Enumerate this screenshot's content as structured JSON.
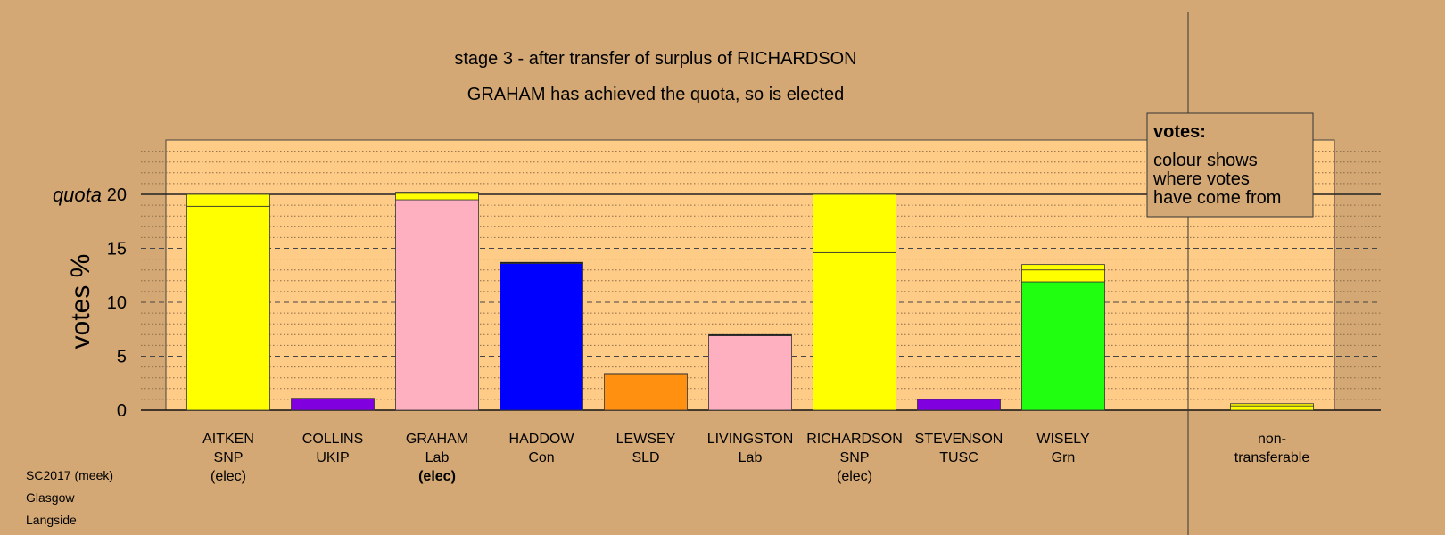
{
  "chart_data": {
    "type": "bar",
    "stacked": true,
    "title": "stage 3 - after transfer of surplus of RICHARDSON",
    "subtitle": "GRAHAM has achieved the quota, so is elected",
    "ylabel": "votes %",
    "ylim": [
      0,
      20
    ],
    "yticks": [
      0,
      5,
      10,
      15,
      20
    ],
    "quota_label": "quota",
    "quota": 20,
    "grid": true,
    "candidates": [
      {
        "name": "AITKEN",
        "party": "SNP",
        "status": "(elec)",
        "status_bold": false,
        "segments": [
          {
            "value": 18.9,
            "color": "#ffff00"
          },
          {
            "value": 1.1,
            "color": "#ffff00"
          }
        ]
      },
      {
        "name": "COLLINS",
        "party": "UKIP",
        "status": "",
        "status_bold": false,
        "segments": [
          {
            "value": 1.1,
            "color": "#8000e0"
          }
        ]
      },
      {
        "name": "GRAHAM",
        "party": "Lab",
        "status": "(elec)",
        "status_bold": true,
        "segments": [
          {
            "value": 19.5,
            "color": "#ffb0c0"
          },
          {
            "value": 0.6,
            "color": "#ffff00"
          },
          {
            "value": 0.1,
            "color": "#000000"
          }
        ]
      },
      {
        "name": "HADDOW",
        "party": "Con",
        "status": "",
        "status_bold": false,
        "segments": [
          {
            "value": 13.6,
            "color": "#0000ff"
          },
          {
            "value": 0.1,
            "color": "#000000"
          }
        ]
      },
      {
        "name": "LEWSEY",
        "party": "SLD",
        "status": "",
        "status_bold": false,
        "segments": [
          {
            "value": 3.3,
            "color": "#ff9010"
          },
          {
            "value": 0.1,
            "color": "#000000"
          }
        ]
      },
      {
        "name": "LIVINGSTON",
        "party": "Lab",
        "status": "",
        "status_bold": false,
        "segments": [
          {
            "value": 6.9,
            "color": "#ffb0c0"
          },
          {
            "value": 0.1,
            "color": "#000000"
          }
        ]
      },
      {
        "name": "RICHARDSON",
        "party": "SNP",
        "status": "(elec)",
        "status_bold": false,
        "segments": [
          {
            "value": 14.6,
            "color": "#ffff00"
          },
          {
            "value": 5.4,
            "color": "#ffff00"
          }
        ]
      },
      {
        "name": "STEVENSON",
        "party": "TUSC",
        "status": "",
        "status_bold": false,
        "segments": [
          {
            "value": 1.0,
            "color": "#8000e0"
          }
        ]
      },
      {
        "name": "WISELY",
        "party": "Grn",
        "status": "",
        "status_bold": false,
        "segments": [
          {
            "value": 11.9,
            "color": "#20ff10"
          },
          {
            "value": 1.1,
            "color": "#ffff00"
          },
          {
            "value": 0.5,
            "color": "#ffff00"
          }
        ]
      }
    ],
    "nontransferable": {
      "label_line1": "non-",
      "label_line2": "transferable",
      "segments": [
        {
          "value": 0.4,
          "color": "#ffff00"
        },
        {
          "value": 0.2,
          "color": "#ffff00"
        }
      ]
    },
    "legend": {
      "position": "top-right",
      "title": "votes:",
      "lines": [
        "colour shows",
        "where votes",
        "have come from"
      ]
    },
    "colors": {
      "background": "#d4a874",
      "plot_background": "#ffcc88"
    }
  },
  "footer": {
    "line1": "SC2017 (meek)",
    "line2": "Glasgow",
    "line3": "Langside"
  }
}
